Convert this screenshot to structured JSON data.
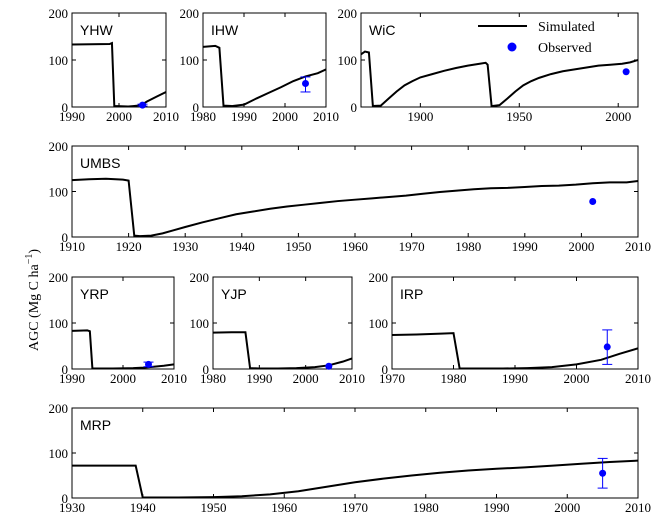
{
  "figure": {
    "ylabel": "AGC (Mg C ha",
    "ylabel_sup": "−1",
    "ylabel_close": ")",
    "legend": {
      "simulated": "Simulated",
      "observed": "Observed"
    },
    "colors": {
      "simulated": "#000000",
      "observed": "#0000ff"
    }
  },
  "chart_data": [
    {
      "id": "yhw",
      "type": "line",
      "label": "YHW",
      "xlim": [
        1990,
        2010
      ],
      "ylim": [
        0,
        200
      ],
      "xticks": [
        1990,
        2000,
        2010
      ],
      "yticks": [
        0,
        100,
        200
      ],
      "simulated": {
        "x": [
          1990,
          1998,
          1998.5,
          1999,
          2002,
          2003,
          2004,
          2005,
          2006,
          2008,
          2010
        ],
        "y": [
          133,
          134,
          136,
          2,
          1,
          2,
          3,
          6,
          12,
          22,
          32
        ]
      },
      "observed": {
        "x": [
          2005
        ],
        "y": [
          4
        ],
        "err_low": [
          2
        ],
        "err_high": [
          6
        ]
      }
    },
    {
      "id": "ihw",
      "type": "line",
      "label": "IHW",
      "xlim": [
        1980,
        2010
      ],
      "ylim": [
        0,
        200
      ],
      "xticks": [
        1980,
        1990,
        2000,
        2010
      ],
      "yticks": [
        0,
        100,
        200
      ],
      "simulated": {
        "x": [
          1980,
          1983,
          1984,
          1985,
          1987,
          1990,
          1993,
          1996,
          1999,
          2002,
          2005,
          2008,
          2010
        ],
        "y": [
          128,
          130,
          126,
          3,
          2,
          5,
          18,
          30,
          42,
          55,
          65,
          72,
          80
        ]
      },
      "observed": {
        "x": [
          2005
        ],
        "y": [
          50
        ],
        "err_low": [
          32
        ],
        "err_high": [
          64
        ]
      }
    },
    {
      "id": "wic",
      "type": "line",
      "label": "WiC",
      "xlim": [
        1870,
        2010
      ],
      "ylim": [
        0,
        200
      ],
      "xticks": [
        1900,
        1950,
        2000
      ],
      "yticks": [
        0,
        100,
        200
      ],
      "simulated": {
        "x": [
          1870,
          1872,
          1874,
          1876,
          1880,
          1884,
          1888,
          1892,
          1896,
          1900,
          1906,
          1912,
          1918,
          1924,
          1930,
          1933,
          1934,
          1936,
          1940,
          1944,
          1948,
          1952,
          1956,
          1960,
          1966,
          1972,
          1978,
          1984,
          1990,
          1996,
          2002,
          2006,
          2010
        ],
        "y": [
          112,
          118,
          116,
          2,
          3,
          18,
          33,
          46,
          55,
          63,
          70,
          77,
          83,
          88,
          92,
          94,
          90,
          2,
          4,
          18,
          33,
          46,
          55,
          62,
          70,
          76,
          80,
          84,
          88,
          90,
          92,
          95,
          100
        ]
      },
      "observed": {
        "x": [
          2004
        ],
        "y": [
          75
        ]
      }
    },
    {
      "id": "umbs",
      "type": "line",
      "label": "UMBS",
      "xlim": [
        1910,
        2010
      ],
      "ylim": [
        0,
        200
      ],
      "xticks": [
        1910,
        1920,
        1930,
        1940,
        1950,
        1960,
        1970,
        1980,
        1990,
        2000,
        2010
      ],
      "yticks": [
        0,
        100,
        200
      ],
      "simulated": {
        "x": [
          1910,
          1913,
          1916,
          1919,
          1920,
          1921,
          1922,
          1924,
          1926,
          1928,
          1930,
          1933,
          1936,
          1939,
          1942,
          1945,
          1948,
          1951,
          1954,
          1957,
          1960,
          1963,
          1966,
          1969,
          1972,
          1975,
          1978,
          1981,
          1984,
          1987,
          1990,
          1993,
          1996,
          1999,
          2002,
          2005,
          2008,
          2010
        ],
        "y": [
          125,
          127,
          128,
          126,
          124,
          3,
          2,
          3,
          8,
          15,
          22,
          32,
          41,
          50,
          56,
          62,
          67,
          71,
          75,
          79,
          82,
          85,
          88,
          91,
          95,
          99,
          102,
          105,
          107,
          108,
          110,
          112,
          113,
          115,
          118,
          120,
          120,
          123
        ]
      },
      "observed": {
        "x": [
          2002
        ],
        "y": [
          78
        ]
      }
    },
    {
      "id": "yrp",
      "type": "line",
      "label": "YRP",
      "xlim": [
        1990,
        2010
      ],
      "ylim": [
        0,
        200
      ],
      "xticks": [
        1990,
        2000,
        2010
      ],
      "yticks": [
        0,
        100,
        200
      ],
      "simulated": {
        "x": [
          1990,
          1993,
          1993.5,
          1994,
          1998,
          2002,
          2004,
          2006,
          2008,
          2010
        ],
        "y": [
          83,
          84,
          82,
          1,
          1,
          2,
          3,
          5,
          7,
          10
        ]
      },
      "observed": {
        "x": [
          2005
        ],
        "y": [
          10
        ],
        "err_low": [
          5
        ],
        "err_high": [
          15
        ]
      }
    },
    {
      "id": "yjp",
      "type": "line",
      "label": "YJP",
      "xlim": [
        1980,
        2010
      ],
      "ylim": [
        0,
        200
      ],
      "xticks": [
        1980,
        1990,
        2000,
        2010
      ],
      "yticks": [
        0,
        100,
        200
      ],
      "simulated": {
        "x": [
          1980,
          1984,
          1987,
          1988,
          1990,
          1994,
          1998,
          2002,
          2005,
          2008,
          2010
        ],
        "y": [
          79,
          80,
          80,
          2,
          1,
          1,
          2,
          4,
          8,
          16,
          23
        ]
      },
      "observed": {
        "x": [
          2005
        ],
        "y": [
          6
        ]
      }
    },
    {
      "id": "irp",
      "type": "line",
      "label": "IRP",
      "xlim": [
        1970,
        2010
      ],
      "ylim": [
        0,
        200
      ],
      "xticks": [
        1970,
        1980,
        1990,
        2000,
        2010
      ],
      "yticks": [
        0,
        100,
        200
      ],
      "simulated": {
        "x": [
          1970,
          1974,
          1978,
          1980,
          1981,
          1984,
          1988,
          1992,
          1996,
          2000,
          2004,
          2007,
          2010
        ],
        "y": [
          74,
          75,
          77,
          78,
          1,
          1,
          1,
          2,
          4,
          10,
          20,
          33,
          45
        ]
      },
      "observed": {
        "x": [
          2005
        ],
        "y": [
          48
        ],
        "err_low": [
          10
        ],
        "err_high": [
          85
        ]
      }
    },
    {
      "id": "mrp",
      "type": "line",
      "label": "MRP",
      "xlim": [
        1930,
        2010
      ],
      "ylim": [
        0,
        200
      ],
      "xticks": [
        1930,
        1940,
        1950,
        1960,
        1970,
        1980,
        1990,
        2000,
        2010
      ],
      "yticks": [
        0,
        100,
        200
      ],
      "simulated": {
        "x": [
          1930,
          1935,
          1939,
          1940,
          1945,
          1950,
          1954,
          1958,
          1962,
          1966,
          1970,
          1974,
          1978,
          1982,
          1986,
          1990,
          1994,
          1998,
          2002,
          2006,
          2010
        ],
        "y": [
          72,
          72,
          72,
          1,
          1,
          2,
          4,
          8,
          15,
          25,
          35,
          43,
          50,
          56,
          61,
          65,
          68,
          72,
          76,
          80,
          83
        ]
      },
      "observed": {
        "x": [
          2005
        ],
        "y": [
          55
        ],
        "err_low": [
          22
        ],
        "err_high": [
          88
        ]
      }
    }
  ]
}
